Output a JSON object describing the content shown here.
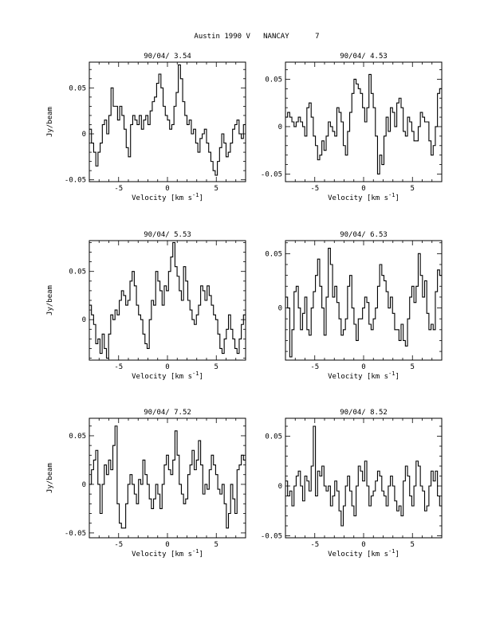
{
  "page_title": "Austin 1990 V   NANCAY      7",
  "chart_data": [
    {
      "type": "line",
      "step": true,
      "title": "90/04/ 3.54",
      "xlabel": "Velocity [km s",
      "xlabel_sup": "-1",
      "xlabel_tail": "]",
      "ylabel": "Jy/beam",
      "xlim": [
        -8,
        8
      ],
      "ylim": [
        -0.052,
        0.078
      ],
      "xticks": [
        -5,
        0,
        5
      ],
      "yticks": [
        0.05,
        0,
        -0.05
      ],
      "ytick_labels": [
        "0.05",
        "0",
        "-0.05"
      ],
      "values": [
        0.005,
        -0.01,
        -0.02,
        -0.035,
        -0.02,
        -0.01,
        0.01,
        0.015,
        0.0,
        0.02,
        0.05,
        0.03,
        0.03,
        0.015,
        0.03,
        0.02,
        0.005,
        -0.015,
        -0.025,
        0.01,
        0.02,
        0.015,
        0.01,
        0.02,
        0.005,
        0.015,
        0.02,
        0.01,
        0.025,
        0.035,
        0.04,
        0.055,
        0.065,
        0.05,
        0.03,
        0.02,
        0.015,
        0.005,
        0.01,
        0.03,
        0.045,
        0.075,
        0.06,
        0.035,
        0.02,
        0.01,
        0.015,
        0.0,
        0.005,
        -0.01,
        -0.02,
        -0.005,
        0.0,
        0.005,
        -0.01,
        -0.02,
        -0.03,
        -0.04,
        -0.045,
        -0.03,
        -0.015,
        0.0,
        -0.01,
        -0.025,
        -0.02,
        -0.01,
        0.005,
        0.01,
        0.015,
        0.0,
        -0.005,
        0.01
      ]
    },
    {
      "type": "line",
      "step": true,
      "title": "90/04/ 4.53",
      "xlabel": "Velocity [km s",
      "xlabel_sup": "-1",
      "xlabel_tail": "]",
      "ylabel": "",
      "xlim": [
        -8,
        8
      ],
      "ylim": [
        -0.058,
        0.068
      ],
      "xticks": [
        -5,
        0,
        5
      ],
      "yticks": [
        0.05,
        0,
        -0.05
      ],
      "ytick_labels": [
        "0.05",
        "0",
        "-0.05"
      ],
      "values": [
        0.01,
        0.015,
        0.01,
        0.005,
        0.0,
        0.005,
        0.01,
        0.005,
        0.0,
        -0.01,
        0.02,
        0.025,
        0.01,
        -0.01,
        -0.02,
        -0.035,
        -0.03,
        -0.015,
        -0.025,
        -0.01,
        0.005,
        0.0,
        -0.005,
        -0.01,
        0.02,
        0.015,
        0.005,
        -0.02,
        -0.03,
        -0.005,
        0.015,
        0.035,
        0.05,
        0.045,
        0.04,
        0.035,
        0.02,
        0.005,
        0.02,
        0.055,
        0.035,
        0.02,
        -0.01,
        -0.05,
        -0.03,
        -0.04,
        -0.01,
        0.01,
        -0.005,
        0.02,
        0.015,
        0.0,
        0.025,
        0.03,
        0.02,
        -0.005,
        -0.01,
        0.01,
        0.005,
        -0.005,
        -0.015,
        -0.015,
        0.0,
        0.015,
        0.01,
        0.005,
        0.005,
        -0.015,
        -0.03,
        -0.02,
        0.0,
        0.035,
        0.04
      ]
    },
    {
      "type": "line",
      "step": true,
      "title": "90/04/ 5.53",
      "xlabel": "Velocity [km s",
      "xlabel_sup": "-1",
      "xlabel_tail": "]",
      "ylabel": "Jy/beam",
      "xlim": [
        -8,
        8
      ],
      "ylim": [
        -0.042,
        0.082
      ],
      "xticks": [
        -5,
        0,
        5
      ],
      "yticks": [
        0.05,
        0
      ],
      "ytick_labels": [
        "0.05",
        "0"
      ],
      "values": [
        0.015,
        0.005,
        -0.005,
        -0.025,
        -0.02,
        -0.035,
        -0.015,
        -0.03,
        -0.04,
        -0.015,
        0.005,
        0.0,
        0.01,
        0.005,
        0.02,
        0.03,
        0.025,
        0.015,
        0.02,
        0.04,
        0.05,
        0.035,
        0.015,
        0.005,
        0.0,
        -0.015,
        -0.025,
        -0.03,
        0.0,
        0.02,
        0.015,
        0.05,
        0.04,
        0.03,
        0.015,
        0.035,
        0.03,
        0.05,
        0.065,
        0.08,
        0.055,
        0.045,
        0.03,
        0.02,
        0.055,
        0.04,
        0.02,
        0.01,
        0.0,
        -0.005,
        0.005,
        0.015,
        0.035,
        0.03,
        0.02,
        0.035,
        0.025,
        0.015,
        0.005,
        0.0,
        -0.015,
        -0.03,
        -0.035,
        -0.02,
        -0.01,
        0.005,
        -0.01,
        -0.02,
        -0.03,
        -0.035,
        -0.02,
        -0.005,
        0.005
      ]
    },
    {
      "type": "line",
      "step": true,
      "title": "90/04/ 6.53",
      "xlabel": "Velocity [km s",
      "xlabel_sup": "-1",
      "xlabel_tail": "]",
      "ylabel": "",
      "xlim": [
        -8,
        8
      ],
      "ylim": [
        -0.048,
        0.062
      ],
      "xticks": [
        -5,
        0,
        5
      ],
      "yticks": [
        0.05,
        0
      ],
      "ytick_labels": [
        "0.05",
        "0"
      ],
      "values": [
        0.01,
        0.0,
        -0.045,
        -0.02,
        0.015,
        0.02,
        0.0,
        -0.02,
        -0.005,
        0.01,
        -0.02,
        -0.025,
        0.0,
        0.015,
        0.03,
        0.045,
        0.02,
        0.0,
        -0.025,
        0.01,
        0.055,
        0.04,
        0.01,
        0.02,
        0.005,
        -0.01,
        -0.025,
        -0.02,
        -0.01,
        0.02,
        0.03,
        0.0,
        -0.015,
        -0.03,
        -0.01,
        -0.01,
        0.0,
        0.01,
        0.005,
        -0.015,
        -0.02,
        -0.01,
        0.0,
        0.02,
        0.04,
        0.03,
        0.025,
        0.015,
        0.0,
        0.01,
        -0.005,
        -0.02,
        -0.02,
        -0.03,
        -0.015,
        -0.03,
        -0.035,
        -0.01,
        0.01,
        0.02,
        0.005,
        0.02,
        0.05,
        0.03,
        0.01,
        0.025,
        -0.005,
        -0.02,
        -0.015,
        -0.02,
        0.015,
        0.035,
        0.03
      ]
    },
    {
      "type": "line",
      "step": true,
      "title": "90/04/ 7.52",
      "xlabel": "Velocity [km s",
      "xlabel_sup": "-1",
      "xlabel_tail": "]",
      "ylabel": "Jy/beam",
      "xlim": [
        -8,
        8
      ],
      "ylim": [
        -0.055,
        0.068
      ],
      "xticks": [
        -5,
        0,
        5
      ],
      "yticks": [
        0.05,
        0,
        -0.05
      ],
      "ytick_labels": [
        "0.05",
        "0",
        "-0.05"
      ],
      "values": [
        0.0,
        0.015,
        0.025,
        0.035,
        0.0,
        -0.03,
        0.0,
        0.02,
        0.01,
        0.025,
        0.015,
        0.04,
        0.06,
        -0.02,
        -0.04,
        -0.045,
        -0.045,
        -0.02,
        0.0,
        0.01,
        0.0,
        -0.01,
        -0.02,
        0.005,
        0.0,
        0.025,
        0.01,
        0.0,
        -0.015,
        -0.025,
        -0.015,
        0.0,
        -0.01,
        -0.025,
        0.0,
        0.02,
        0.03,
        0.015,
        0.01,
        0.025,
        0.055,
        0.03,
        0.0,
        -0.01,
        -0.02,
        -0.015,
        0.01,
        0.02,
        0.035,
        0.015,
        0.025,
        0.045,
        0.02,
        -0.01,
        0.0,
        -0.005,
        0.015,
        0.03,
        0.02,
        0.01,
        -0.005,
        -0.01,
        0.0,
        -0.02,
        -0.045,
        -0.03,
        0.0,
        -0.015,
        -0.03,
        0.015,
        0.02,
        0.03,
        0.025
      ]
    },
    {
      "type": "line",
      "step": true,
      "title": "90/04/ 8.52",
      "xlabel": "Velocity [km s",
      "xlabel_sup": "-1",
      "xlabel_tail": "]",
      "ylabel": "",
      "xlim": [
        -8,
        8
      ],
      "ylim": [
        -0.052,
        0.068
      ],
      "xticks": [
        -5,
        0,
        5
      ],
      "yticks": [
        0.05,
        0,
        -0.05
      ],
      "ytick_labels": [
        "0.05",
        "0",
        "-0.05"
      ],
      "values": [
        0.005,
        -0.01,
        -0.005,
        -0.02,
        0.0,
        0.01,
        0.015,
        0.0,
        -0.015,
        0.01,
        0.005,
        -0.005,
        0.02,
        0.06,
        -0.01,
        0.015,
        0.01,
        0.02,
        0.0,
        -0.005,
        0.0,
        -0.02,
        -0.01,
        0.005,
        -0.005,
        -0.025,
        -0.04,
        -0.02,
        0.0,
        0.01,
        -0.005,
        -0.02,
        -0.03,
        0.0,
        0.02,
        0.015,
        0.005,
        0.025,
        0.0,
        -0.02,
        -0.01,
        -0.005,
        0.005,
        0.015,
        0.01,
        -0.005,
        -0.01,
        -0.02,
        0.0,
        0.01,
        0.0,
        -0.015,
        -0.025,
        -0.02,
        -0.03,
        0.005,
        0.02,
        0.01,
        -0.01,
        -0.02,
        0.0,
        0.025,
        0.02,
        0.0,
        -0.005,
        -0.025,
        -0.02,
        0.0,
        0.015,
        0.005,
        0.015,
        -0.01,
        -0.02
      ]
    }
  ]
}
